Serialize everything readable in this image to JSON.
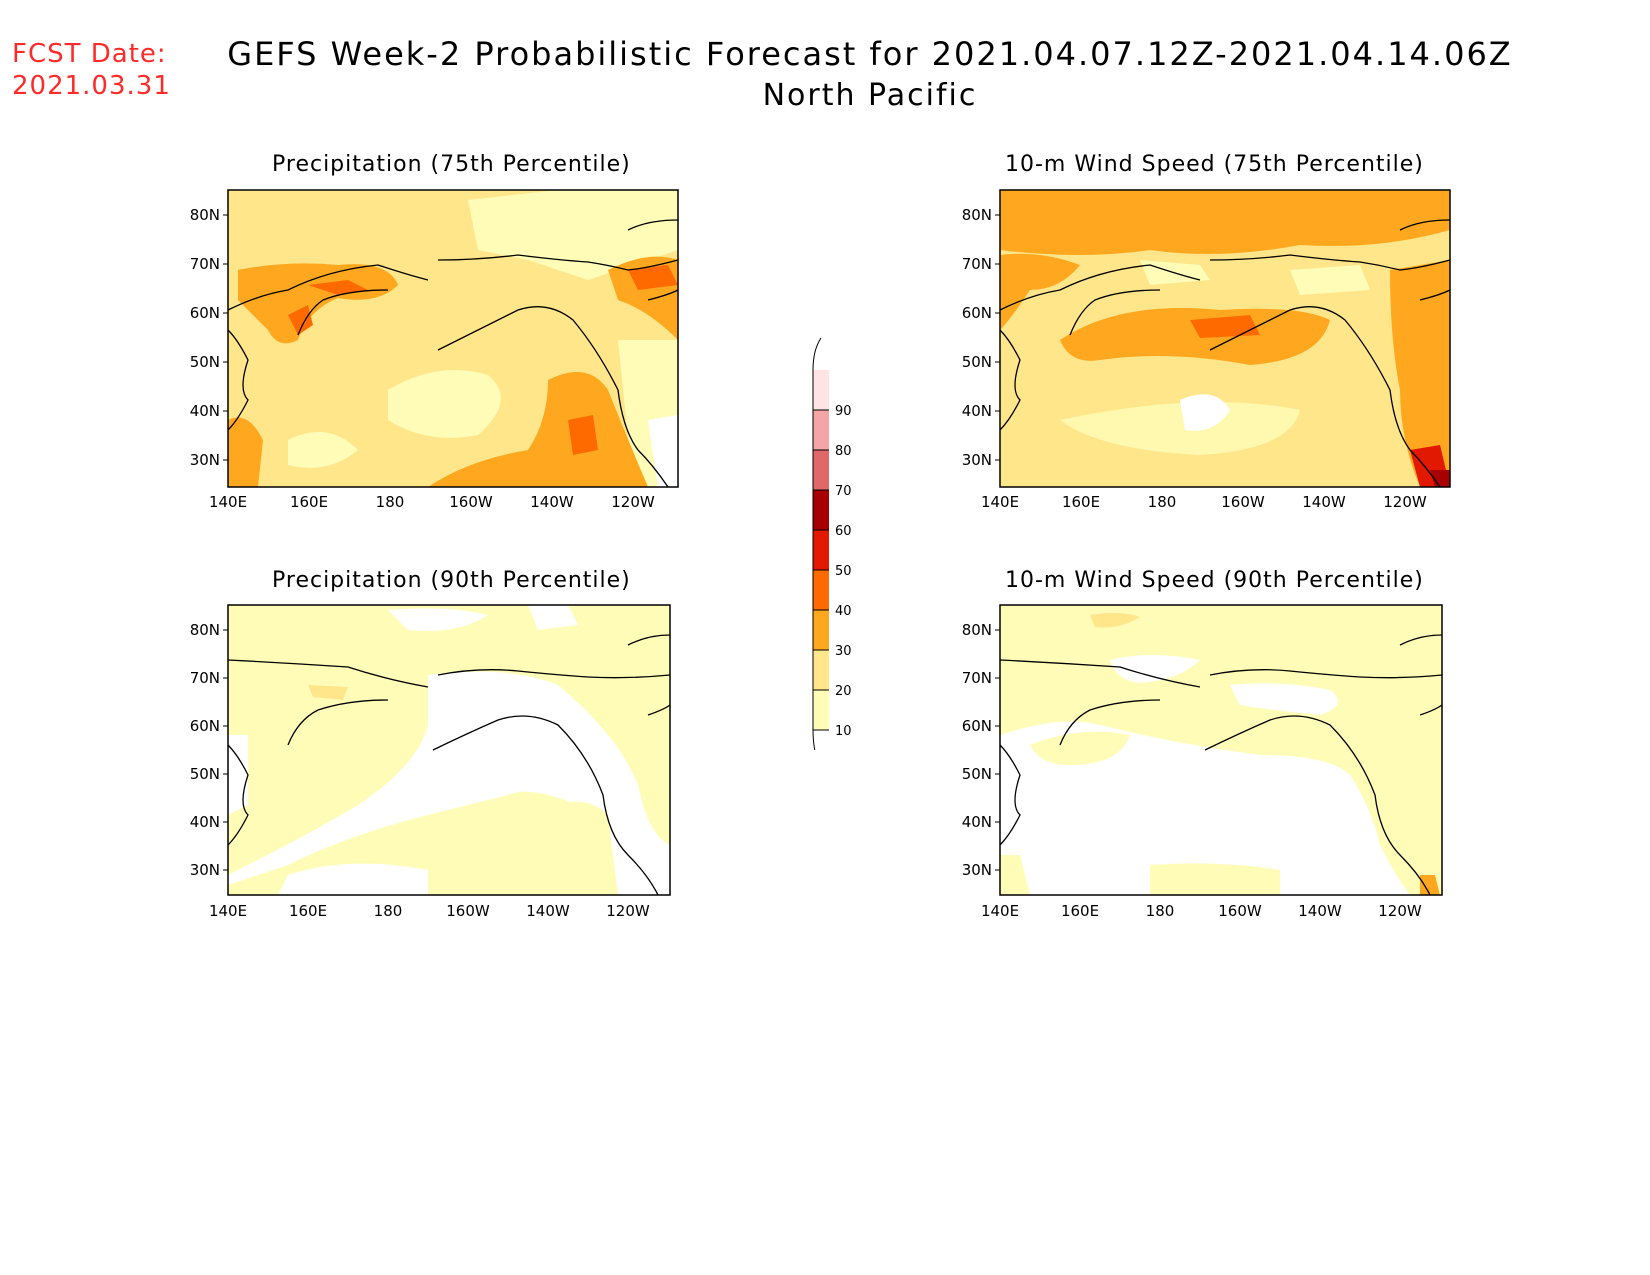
{
  "header": {
    "fcst_label": "FCST Date:",
    "fcst_date": "2021.03.31",
    "title": "GEFS Week-2 Probabilistic Forecast for 2021.04.07.12Z-2021.04.14.06Z",
    "subtitle": "North Pacific"
  },
  "panels": [
    {
      "title": "Precipitation (75th Percentile)"
    },
    {
      "title": "10-m Wind Speed (75th Percentile)"
    },
    {
      "title": "Precipitation (90th Percentile)"
    },
    {
      "title": "10-m Wind Speed (90th Percentile)"
    }
  ],
  "axes": {
    "lat_labels": [
      "80N",
      "70N",
      "60N",
      "50N",
      "40N",
      "30N"
    ],
    "lon_labels": [
      "140E",
      "160E",
      "180",
      "160W",
      "140W",
      "120W"
    ]
  },
  "colorbar": {
    "labels": [
      "10",
      "20",
      "30",
      "40",
      "50",
      "60",
      "70",
      "80",
      "90"
    ],
    "colors": [
      "#fffcb8",
      "#ffe68a",
      "#ffa81f",
      "#ff6a00",
      "#e21800",
      "#a80000",
      "#e06868",
      "#f4a5a5",
      "#ffe4e4"
    ]
  }
}
